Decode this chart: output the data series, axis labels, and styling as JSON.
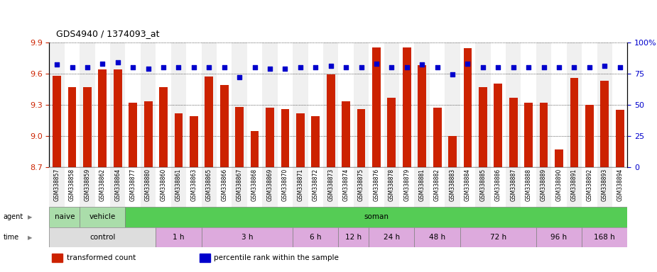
{
  "title": "GDS4940 / 1374093_at",
  "samples": [
    "GSM338857",
    "GSM338858",
    "GSM338859",
    "GSM338862",
    "GSM338864",
    "GSM338877",
    "GSM338880",
    "GSM338860",
    "GSM338861",
    "GSM338863",
    "GSM338865",
    "GSM338866",
    "GSM338867",
    "GSM338868",
    "GSM338869",
    "GSM338870",
    "GSM338871",
    "GSM338872",
    "GSM338873",
    "GSM338874",
    "GSM338875",
    "GSM338876",
    "GSM338878",
    "GSM338879",
    "GSM338881",
    "GSM338882",
    "GSM338883",
    "GSM338884",
    "GSM338885",
    "GSM338886",
    "GSM338887",
    "GSM338888",
    "GSM338889",
    "GSM338890",
    "GSM338891",
    "GSM338892",
    "GSM338893",
    "GSM338894"
  ],
  "red_values": [
    9.58,
    9.47,
    9.47,
    9.64,
    9.64,
    9.32,
    9.33,
    9.47,
    9.22,
    9.19,
    9.57,
    9.49,
    9.28,
    9.05,
    9.27,
    9.26,
    9.22,
    9.19,
    9.59,
    9.33,
    9.26,
    9.85,
    9.37,
    9.85,
    9.68,
    9.27,
    9.0,
    9.84,
    9.47,
    9.5,
    9.37,
    9.32,
    9.32,
    8.87,
    9.56,
    9.3,
    9.53,
    9.25
  ],
  "blue_values": [
    82,
    80,
    80,
    83,
    84,
    80,
    79,
    80,
    80,
    80,
    80,
    80,
    72,
    80,
    79,
    79,
    80,
    80,
    81,
    80,
    80,
    83,
    80,
    80,
    82,
    80,
    74,
    83,
    80,
    80,
    80,
    80,
    80,
    80,
    80,
    80,
    81,
    80
  ],
  "ylim_left": [
    8.7,
    9.9
  ],
  "ylim_right": [
    0,
    100
  ],
  "yticks_left": [
    8.7,
    9.0,
    9.3,
    9.6,
    9.9
  ],
  "yticks_right": [
    0,
    25,
    50,
    75,
    100
  ],
  "bar_color": "#cc2200",
  "dot_color": "#0000cc",
  "agent_spans": [
    {
      "label": "naive",
      "start": 0,
      "end": 2,
      "color": "#aaddaa"
    },
    {
      "label": "vehicle",
      "start": 2,
      "end": 5,
      "color": "#aaddaa"
    },
    {
      "label": "soman",
      "start": 5,
      "end": 38,
      "color": "#55cc55"
    }
  ],
  "time_groups": [
    {
      "label": "control",
      "start": 0,
      "end": 7,
      "color": "#dddddd"
    },
    {
      "label": "1 h",
      "start": 7,
      "end": 10,
      "color": "#ddaadd"
    },
    {
      "label": "3 h",
      "start": 10,
      "end": 16,
      "color": "#ddaadd"
    },
    {
      "label": "6 h",
      "start": 16,
      "end": 19,
      "color": "#ddaadd"
    },
    {
      "label": "12 h",
      "start": 19,
      "end": 21,
      "color": "#ddaadd"
    },
    {
      "label": "24 h",
      "start": 21,
      "end": 24,
      "color": "#ddaadd"
    },
    {
      "label": "48 h",
      "start": 24,
      "end": 27,
      "color": "#ddaadd"
    },
    {
      "label": "72 h",
      "start": 27,
      "end": 32,
      "color": "#ddaadd"
    },
    {
      "label": "96 h",
      "start": 32,
      "end": 35,
      "color": "#ddaadd"
    },
    {
      "label": "168 h",
      "start": 35,
      "end": 38,
      "color": "#ddaadd"
    }
  ],
  "legend_items": [
    {
      "label": "transformed count",
      "color": "#cc2200"
    },
    {
      "label": "percentile rank within the sample",
      "color": "#0000cc"
    }
  ],
  "bg_colors": [
    "#f0f0f0",
    "#ffffff"
  ]
}
